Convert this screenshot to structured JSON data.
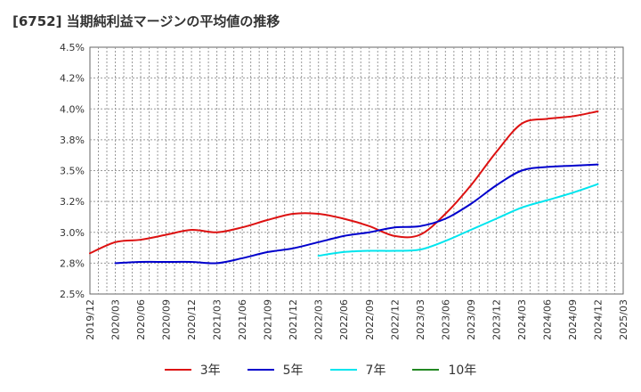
{
  "chart_data": {
    "type": "line",
    "title": "[6752]  当期純利益マージンの平均値の推移",
    "xlabel": "",
    "ylabel": "",
    "ylim": [
      2.5,
      4.5
    ],
    "y_ticks": [
      "2.5%",
      "2.8%",
      "3.0%",
      "3.2%",
      "3.5%",
      "3.8%",
      "4.0%",
      "4.2%",
      "4.5%"
    ],
    "x_ticks": [
      "2019/12",
      "2020/03",
      "2020/06",
      "2020/09",
      "2020/12",
      "2021/03",
      "2021/06",
      "2021/09",
      "2021/12",
      "2022/03",
      "2022/06",
      "2022/09",
      "2022/12",
      "2023/03",
      "2023/06",
      "2023/09",
      "2023/12",
      "2024/03",
      "2024/06",
      "2024/09",
      "2024/12",
      "2025/03"
    ],
    "grid": true,
    "legend_position": "bottom",
    "series": [
      {
        "name": "3年",
        "color": "#dd1111",
        "x": [
          "2019/12",
          "2020/03",
          "2020/06",
          "2020/09",
          "2020/12",
          "2021/03",
          "2021/06",
          "2021/09",
          "2021/12",
          "2022/03",
          "2022/06",
          "2022/09",
          "2022/12",
          "2023/03",
          "2023/06",
          "2023/09",
          "2023/12",
          "2024/03",
          "2024/06",
          "2024/09",
          "2024/12"
        ],
        "values": [
          2.83,
          2.92,
          2.94,
          2.98,
          3.02,
          3.0,
          3.04,
          3.1,
          3.15,
          3.15,
          3.11,
          3.05,
          2.97,
          2.98,
          3.15,
          3.38,
          3.65,
          3.88,
          3.92,
          3.94,
          3.98
        ]
      },
      {
        "name": "5年",
        "color": "#0000cc",
        "x": [
          "2020/03",
          "2020/06",
          "2020/09",
          "2020/12",
          "2021/03",
          "2021/06",
          "2021/09",
          "2021/12",
          "2022/03",
          "2022/06",
          "2022/09",
          "2022/12",
          "2023/03",
          "2023/06",
          "2023/09",
          "2023/12",
          "2024/03",
          "2024/06",
          "2024/09",
          "2024/12"
        ],
        "values": [
          2.75,
          2.76,
          2.76,
          2.76,
          2.75,
          2.79,
          2.84,
          2.87,
          2.92,
          2.97,
          3.0,
          3.04,
          3.05,
          3.11,
          3.23,
          3.38,
          3.5,
          3.53,
          3.54,
          3.55
        ]
      },
      {
        "name": "7年",
        "color": "#00e5ee",
        "x": [
          "2022/03",
          "2022/06",
          "2022/09",
          "2022/12",
          "2023/03",
          "2023/06",
          "2023/09",
          "2023/12",
          "2024/03",
          "2024/06",
          "2024/09",
          "2024/12"
        ],
        "values": [
          2.81,
          2.84,
          2.85,
          2.85,
          2.86,
          2.93,
          3.02,
          3.11,
          3.2,
          3.26,
          3.32,
          3.39
        ]
      },
      {
        "name": "10年",
        "color": "#228822",
        "x": [],
        "values": []
      }
    ]
  }
}
